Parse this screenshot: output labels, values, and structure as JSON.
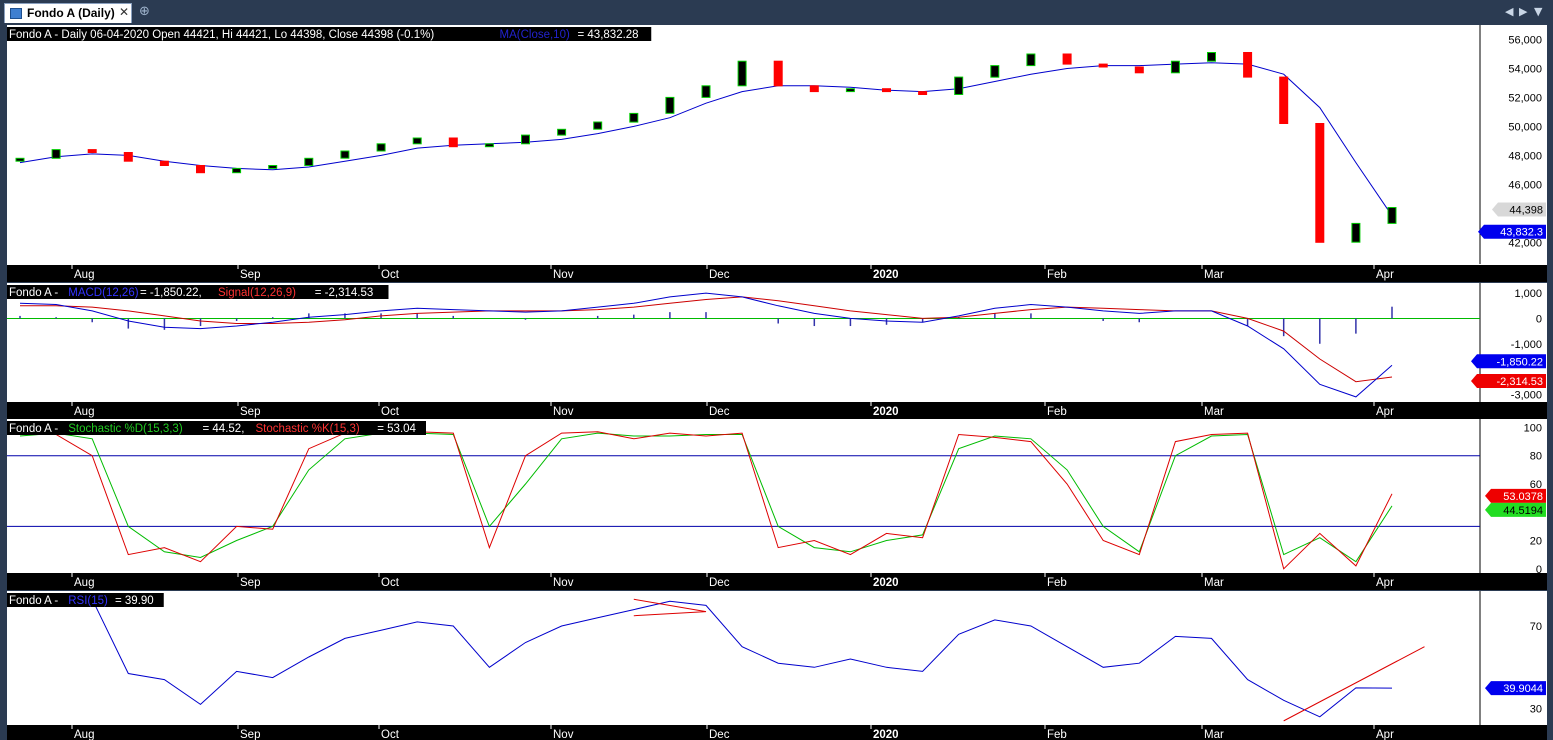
{
  "tab": {
    "icon": "chart-icon",
    "title": "Fondo A (Daily)",
    "close_icon": "close-icon",
    "add_icon": "add-tab-icon"
  },
  "nav": {
    "prev_icon": "scroll-left-icon",
    "next_icon": "scroll-right-icon",
    "menu_icon": "dropdown-icon"
  },
  "colors": {
    "background": "#ffffff",
    "axis_strip": "#000000",
    "up_candle": "#00cc00",
    "down_candle": "#ff0000",
    "ma_line": "#0000cc",
    "macd_line": "#0000cc",
    "signal_line": "#cc0000",
    "stoch_d": "#00bb00",
    "stoch_k": "#dd0000",
    "rsi_line": "#0000cc",
    "zero_line": "#00bb00",
    "stoch_levels": "#0000aa"
  },
  "x_axis": {
    "labels": [
      "Aug",
      "Sep",
      "Oct",
      "Nov",
      "Dec",
      "2020",
      "Feb",
      "Mar",
      "Apr"
    ]
  },
  "chart_data": [
    {
      "type": "candlestick",
      "panel": "price",
      "title_parts": [
        "Fondo A - Daily 06-04-2020 Open 44421, Hi 44421, Lo 44398, Close 44398 (-0.1%)",
        "MA(Close,10)",
        "= 43,832.28"
      ],
      "y_ticks": [
        "56,000",
        "54,000",
        "52,000",
        "50,000",
        "48,000",
        "46,000",
        "42,000"
      ],
      "ylim": [
        40500,
        57000
      ],
      "last_value_labels": [
        "44,398",
        "43,832.3"
      ],
      "x": [
        "Jul 15",
        "Jul 22",
        "Jul 29",
        "Aug 05",
        "Aug 12",
        "Aug 19",
        "Aug 26",
        "Sep 02",
        "Sep 09",
        "Sep 16",
        "Sep 23",
        "Sep 30",
        "Oct 07",
        "Oct 14",
        "Oct 21",
        "Oct 28",
        "Nov 04",
        "Nov 11",
        "Nov 18",
        "Nov 25",
        "Dec 02",
        "Dec 09",
        "Dec 16",
        "Dec 23",
        "Dec 30",
        "Jan 06",
        "Jan 13",
        "Jan 20",
        "Jan 27",
        "Feb 03",
        "Feb 10",
        "Feb 17",
        "Feb 24",
        "Mar 02",
        "Mar 09",
        "Mar 16",
        "Mar 23",
        "Mar 30",
        "Apr 06"
      ],
      "close": [
        47800,
        48400,
        48200,
        47600,
        47300,
        46800,
        47100,
        47300,
        47800,
        48300,
        48800,
        49200,
        48600,
        48800,
        49400,
        49800,
        50300,
        50900,
        52000,
        52800,
        54500,
        52800,
        52400,
        52600,
        52400,
        52200,
        53400,
        54200,
        55000,
        54300,
        54100,
        53700,
        54500,
        55100,
        53400,
        50200,
        42000,
        43300,
        44398
      ],
      "ma": [
        47500,
        47900,
        48100,
        48000,
        47600,
        47300,
        47100,
        47000,
        47200,
        47600,
        48000,
        48500,
        48700,
        48800,
        48900,
        49100,
        49500,
        50000,
        50600,
        51600,
        52400,
        52800,
        52800,
        52700,
        52500,
        52400,
        52600,
        53100,
        53600,
        54000,
        54200,
        54200,
        54300,
        54400,
        54300,
        53600,
        51300,
        47500,
        43832.28
      ],
      "series": [
        {
          "name": "Fondo A"
        },
        {
          "name": "MA(Close,10)",
          "last": 43832.28
        }
      ]
    },
    {
      "type": "line",
      "panel": "macd",
      "title_parts": [
        "Fondo A -",
        "MACD(12,26)",
        "= -1,850.22,",
        "Signal(12,26,9)",
        "= -2,314.53"
      ],
      "y_ticks": [
        "1,000",
        "0",
        "-1,000",
        "-3,000"
      ],
      "ylim": [
        -3300,
        1400
      ],
      "last_value_labels": [
        "-1,850.22",
        "-2,314.53"
      ],
      "macd": [
        600,
        550,
        300,
        -100,
        -350,
        -400,
        -300,
        -150,
        50,
        150,
        300,
        400,
        350,
        300,
        250,
        300,
        450,
        600,
        850,
        1000,
        850,
        500,
        200,
        0,
        -100,
        -150,
        100,
        400,
        550,
        450,
        300,
        200,
        300,
        300,
        -300,
        -1200,
        -2600,
        -3100,
        -1850.22
      ],
      "signal": [
        500,
        500,
        450,
        300,
        100,
        -100,
        -200,
        -200,
        -150,
        -50,
        100,
        200,
        250,
        300,
        300,
        300,
        350,
        450,
        600,
        750,
        850,
        700,
        500,
        300,
        150,
        0,
        50,
        200,
        350,
        450,
        400,
        350,
        300,
        300,
        0,
        -500,
        -1600,
        -2500,
        -2314.53
      ],
      "series": [
        {
          "name": "MACD(12,26)",
          "last": -1850.22
        },
        {
          "name": "Signal(12,26,9)",
          "last": -2314.53
        }
      ]
    },
    {
      "type": "line",
      "panel": "stochastic",
      "title_parts": [
        "Fondo A -",
        "Stochastic %D(15,3,3)",
        "= 44.52,",
        "Stochastic %K(15,3)",
        "= 53.04"
      ],
      "y_ticks": [
        "100",
        "80",
        "60",
        "40",
        "20",
        "0"
      ],
      "ylim": [
        -3,
        106
      ],
      "levels": [
        80,
        30
      ],
      "last_value_labels": [
        "53.0378",
        "44.5194"
      ],
      "k": [
        96,
        95,
        80,
        10,
        15,
        5,
        30,
        28,
        85,
        96,
        97,
        97,
        96,
        15,
        80,
        96,
        97,
        92,
        96,
        94,
        96,
        15,
        20,
        10,
        25,
        22,
        95,
        93,
        90,
        60,
        20,
        10,
        90,
        95,
        96,
        0,
        25,
        2,
        53.04
      ],
      "d": [
        94,
        96,
        92,
        30,
        12,
        8,
        20,
        30,
        70,
        92,
        96,
        96,
        95,
        30,
        60,
        92,
        96,
        94,
        94,
        95,
        95,
        30,
        15,
        12,
        20,
        24,
        85,
        94,
        92,
        70,
        30,
        12,
        80,
        94,
        95,
        10,
        22,
        5,
        44.52
      ],
      "series": [
        {
          "name": "Stochastic %D(15,3,3)",
          "last": 44.52
        },
        {
          "name": "Stochastic %K(15,3)",
          "last": 53.04
        }
      ]
    },
    {
      "type": "line",
      "panel": "rsi",
      "title_parts": [
        "Fondo A -",
        "RSI(15)",
        "= 39.90"
      ],
      "y_ticks": [
        "70",
        "30"
      ],
      "ylim": [
        22,
        87
      ],
      "last_value_labels": [
        "39.9044"
      ],
      "rsi": [
        80,
        84,
        83,
        47,
        44,
        32,
        48,
        45,
        55,
        64,
        68,
        72,
        70,
        50,
        62,
        70,
        74,
        78,
        82,
        80,
        60,
        52,
        50,
        54,
        50,
        48,
        66,
        73,
        70,
        60,
        50,
        52,
        65,
        64,
        44,
        34,
        26,
        40,
        39.9
      ],
      "series": [
        {
          "name": "RSI(15)",
          "last": 39.9
        }
      ]
    }
  ]
}
